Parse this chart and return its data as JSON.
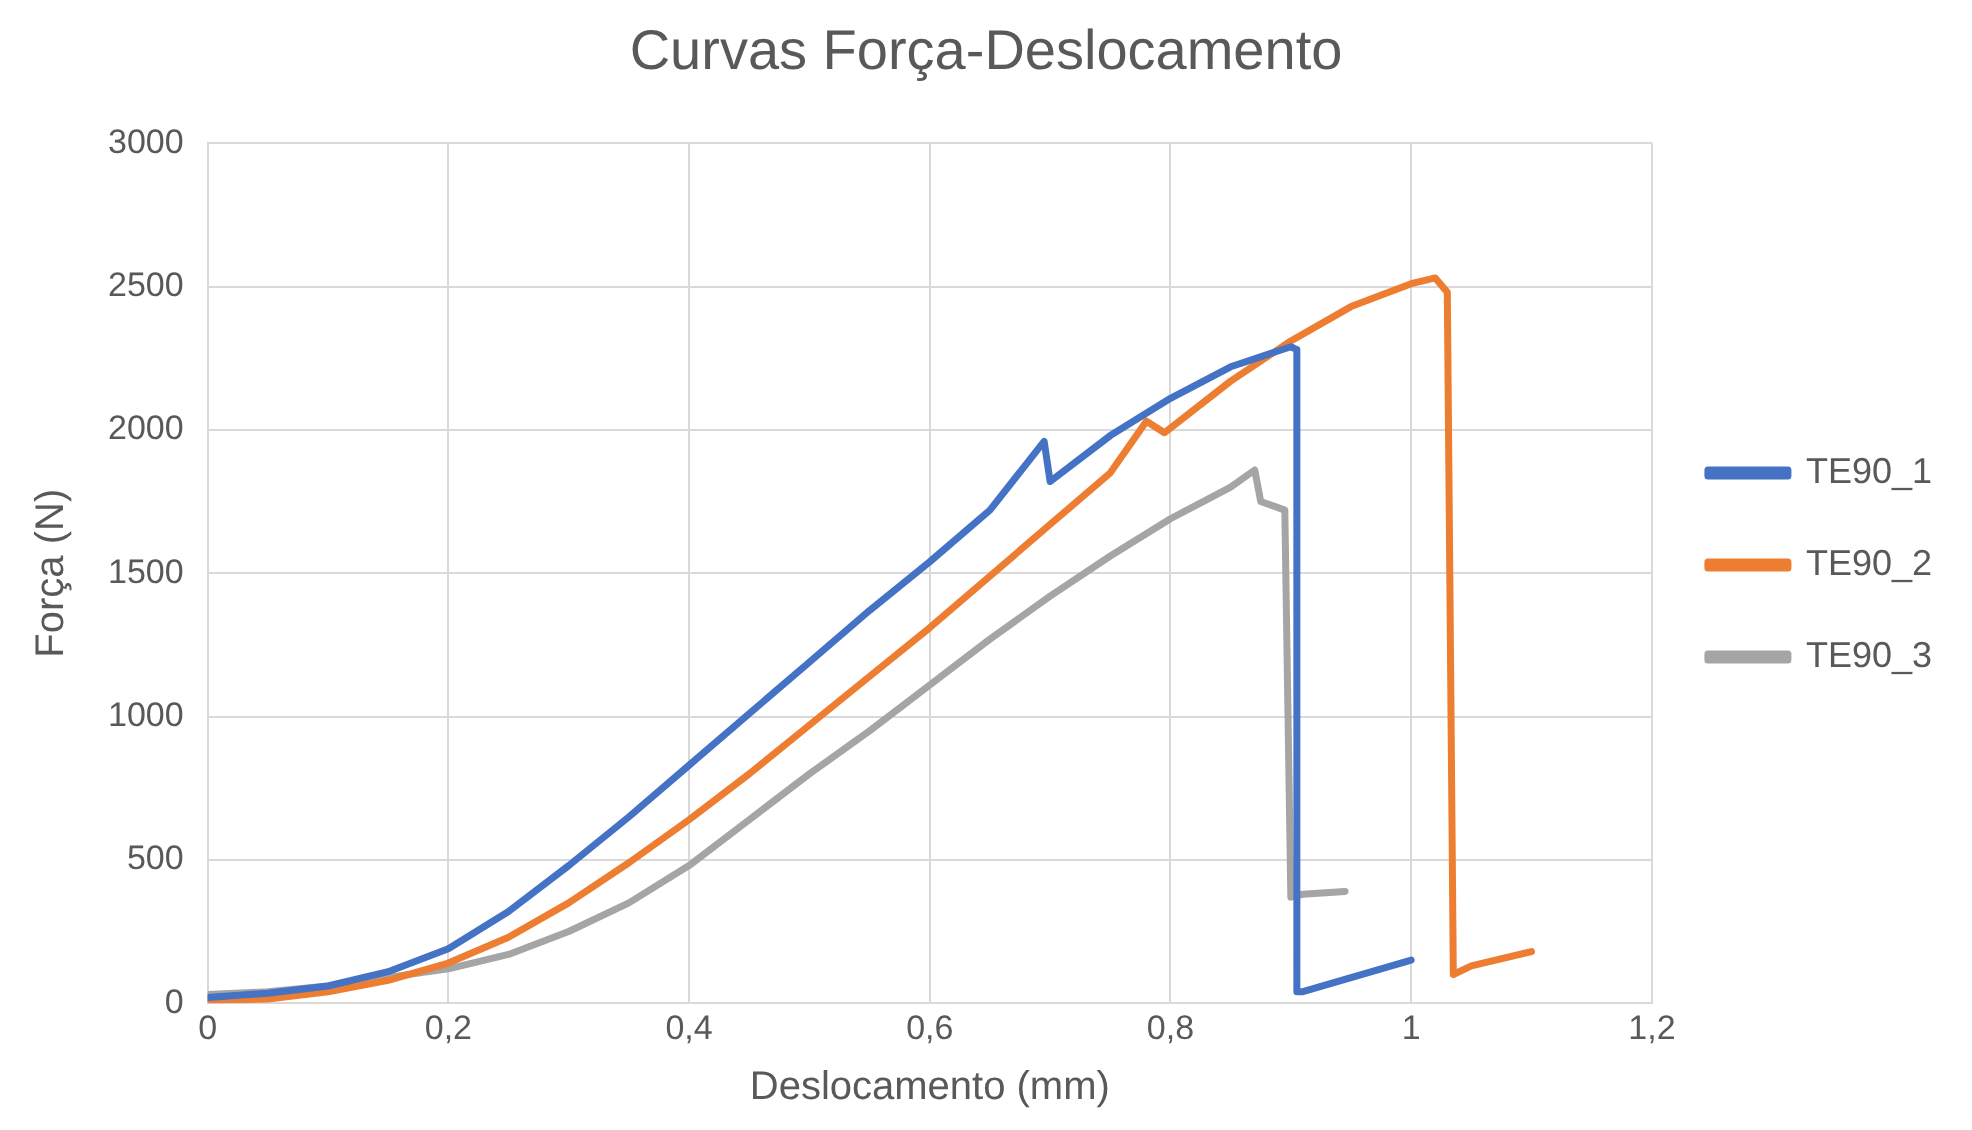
{
  "chart_data": {
    "type": "line",
    "title": "Curvas Força-Deslocamento",
    "xlabel": "Deslocamento (mm)",
    "ylabel": "Força (N)",
    "xlim": [
      0,
      1.2
    ],
    "xticks": [
      0,
      {
        "value": 0.2,
        "label": "0,2"
      },
      {
        "value": 0.4,
        "label": "0,4"
      },
      {
        "value": 0.6,
        "label": "0,6"
      },
      {
        "value": 0.8,
        "label": "0,8"
      },
      1,
      {
        "value": 1.2,
        "label": "1,2"
      }
    ],
    "ylim": [
      0,
      3000
    ],
    "yticks": [
      0,
      500,
      1000,
      1500,
      2000,
      2500,
      3000
    ],
    "grid": true,
    "legend": "right",
    "marker": "none",
    "line_style": "solid",
    "series": [
      {
        "name": "TE90_1",
        "color": "#4472c4",
        "x": [
          0,
          0.05,
          0.1,
          0.15,
          0.2,
          0.25,
          0.3,
          0.35,
          0.4,
          0.45,
          0.5,
          0.55,
          0.6,
          0.65,
          0.695,
          0.7,
          0.75,
          0.8,
          0.85,
          0.9,
          0.905,
          0.905,
          0.91,
          1.0
        ],
        "values": [
          20,
          35,
          60,
          110,
          190,
          320,
          480,
          650,
          830,
          1010,
          1190,
          1370,
          1540,
          1720,
          1960,
          1820,
          1980,
          2110,
          2220,
          2290,
          2280,
          40,
          40,
          150
        ]
      },
      {
        "name": "TE90_2",
        "color": "#ed7d31",
        "x": [
          0,
          0.05,
          0.1,
          0.15,
          0.2,
          0.25,
          0.3,
          0.35,
          0.4,
          0.45,
          0.5,
          0.55,
          0.6,
          0.65,
          0.7,
          0.75,
          0.78,
          0.795,
          0.85,
          0.9,
          0.95,
          1.0,
          1.02,
          1.03,
          1.035,
          1.05,
          1.1
        ],
        "values": [
          10,
          15,
          40,
          80,
          140,
          230,
          350,
          490,
          640,
          800,
          970,
          1140,
          1310,
          1490,
          1670,
          1850,
          2030,
          1990,
          2170,
          2310,
          2430,
          2510,
          2530,
          2480,
          100,
          130,
          180
        ]
      },
      {
        "name": "TE90_3",
        "color": "#a5a5a5",
        "x": [
          0,
          0.05,
          0.1,
          0.15,
          0.2,
          0.25,
          0.3,
          0.35,
          0.4,
          0.45,
          0.5,
          0.55,
          0.6,
          0.65,
          0.7,
          0.75,
          0.8,
          0.85,
          0.87,
          0.875,
          0.895,
          0.9,
          0.91,
          0.945
        ],
        "values": [
          30,
          40,
          60,
          90,
          120,
          170,
          250,
          350,
          480,
          640,
          800,
          950,
          1110,
          1270,
          1420,
          1560,
          1690,
          1800,
          1860,
          1750,
          1720,
          370,
          380,
          390
        ]
      }
    ]
  }
}
